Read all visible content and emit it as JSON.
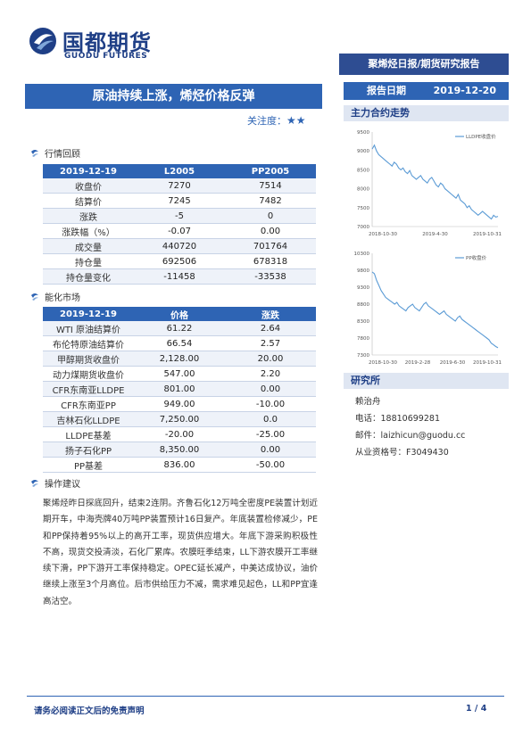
{
  "header": {
    "company_cn": "国都期货",
    "company_en": "GUODU FUTURES",
    "report_type": "聚烯烃日报/期货研究报告"
  },
  "title": {
    "text": "原油持续上涨，烯烃价格反弹",
    "attention_label": "关注度：",
    "attention_stars": "★★"
  },
  "report_date": {
    "label": "报告日期",
    "value": "2019-12-20"
  },
  "section_review": "行情回顾",
  "review_table": {
    "headers": [
      "2019-12-19",
      "L2005",
      "PP2005"
    ],
    "rows": [
      [
        "收盘价",
        "7270",
        "7514"
      ],
      [
        "结算价",
        "7245",
        "7482"
      ],
      [
        "涨跌",
        "-5",
        "0"
      ],
      [
        "涨跌幅（%）",
        "-0.07",
        "0.00"
      ],
      [
        "成交量",
        "440720",
        "701764"
      ],
      [
        "持仓量",
        "692506",
        "678318"
      ],
      [
        "持仓量变化",
        "-11458",
        "-33538"
      ]
    ]
  },
  "section_chem": "能化市场",
  "chem_table": {
    "headers": [
      "2019-12-19",
      "价格",
      "涨跌"
    ],
    "rows": [
      [
        "WTI 原油结算价",
        "61.22",
        "2.64"
      ],
      [
        "布伦特原油结算价",
        "66.54",
        "2.57"
      ],
      [
        "甲醇期货收盘价",
        "2,128.00",
        "20.00"
      ],
      [
        "动力煤期货收盘价",
        "547.00",
        "2.20"
      ],
      [
        "CFR东南亚LLDPE",
        "801.00",
        "0.00"
      ],
      [
        "CFR东南亚PP",
        "949.00",
        "-10.00"
      ],
      [
        "吉林石化LLDPE",
        "7,250.00",
        "0.0"
      ],
      [
        "LLDPE基差",
        "-20.00",
        "-25.00"
      ],
      [
        "扬子石化PP",
        "8,350.00",
        "0.00"
      ],
      [
        "PP基差",
        "836.00",
        "-50.00"
      ]
    ]
  },
  "section_ops": "操作建议",
  "ops_text": "聚烯烃昨日探底回升，结束2连阴。齐鲁石化12万吨全密度PE装置计划近期开车，中海壳牌40万吨PP装置预计16日复产。年底装置检修减少，PE和PP保持着95%以上的高开工率，现货供应增大。年底下游采购积极性不高，现货交投清淡，石化厂累库。农膜旺季结束，LL下游农膜开工率继续下滑，PP下游开工率保持稳定。OPEC延长减产，中美达成协议，油价继续上涨至3个月高位。后市供给压力不减，需求难见起色，LL和PP宜逢高沽空。",
  "right": {
    "trend_title": "主力合约走势",
    "research_title": "研究所",
    "analyst": {
      "name": "赖治舟",
      "phone": "电话：18810699281",
      "email": "邮件：laizhicun@guodu.cc",
      "license": "从业资格号：F3049430"
    }
  },
  "chart_data": [
    {
      "type": "line",
      "series": [
        {
          "name": "LLDPE收盘价",
          "color": "#5b9bd5",
          "values": [
            9050,
            9150,
            9000,
            8900,
            8850,
            8800,
            8750,
            8700,
            8650,
            8600,
            8700,
            8650,
            8550,
            8500,
            8550,
            8450,
            8400,
            8480,
            8350,
            8300,
            8250,
            8300,
            8350,
            8250,
            8200,
            8150,
            8250,
            8300,
            8200,
            8100,
            8050,
            8150,
            8100,
            8000,
            7950,
            7900,
            7850,
            7800,
            7750,
            7850,
            7700,
            7650,
            7600,
            7500,
            7550,
            7450,
            7400,
            7350,
            7300,
            7350,
            7400,
            7350,
            7300,
            7250,
            7200,
            7300,
            7250,
            7270
          ]
        }
      ],
      "x_ticks": [
        "2018-10-30",
        "2019-4-30",
        "2019-10-31"
      ],
      "ylim": [
        7000,
        9500
      ],
      "y_ticks": [
        "9500",
        "9000",
        "8500",
        "8000",
        "7500",
        "7000"
      ],
      "legend": "top-right"
    },
    {
      "type": "line",
      "series": [
        {
          "name": "PP收盘价",
          "color": "#5b9bd5",
          "values": [
            9750,
            9700,
            9500,
            9350,
            9200,
            9100,
            9000,
            8950,
            8900,
            8850,
            8800,
            8850,
            8750,
            8700,
            8650,
            8600,
            8700,
            8750,
            8800,
            8700,
            8650,
            8600,
            8700,
            8800,
            8850,
            8750,
            8700,
            8650,
            8600,
            8550,
            8500,
            8550,
            8600,
            8500,
            8450,
            8400,
            8350,
            8300,
            8400,
            8450,
            8350,
            8300,
            8250,
            8200,
            8150,
            8100,
            8050,
            8000,
            7950,
            7900,
            7850,
            7800,
            7750,
            7650,
            7600,
            7550,
            7514
          ]
        }
      ],
      "x_ticks": [
        "2018-10-30",
        "2019-2-28",
        "2019-6-30",
        "2019-10-31"
      ],
      "ylim": [
        7300,
        10300
      ],
      "y_ticks": [
        "10300",
        "9800",
        "9300",
        "8800",
        "8300",
        "7800",
        "7300"
      ],
      "legend": "top-right"
    }
  ],
  "footer": {
    "disclaimer": "请务必阅读正文后的免责声明",
    "page": "1 / 4"
  }
}
